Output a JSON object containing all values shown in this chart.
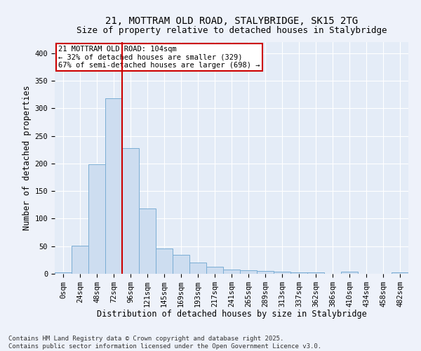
{
  "title_line1": "21, MOTTRAM OLD ROAD, STALYBRIDGE, SK15 2TG",
  "title_line2": "Size of property relative to detached houses in Stalybridge",
  "xlabel": "Distribution of detached houses by size in Stalybridge",
  "ylabel": "Number of detached properties",
  "bar_labels": [
    "0sqm",
    "24sqm",
    "48sqm",
    "72sqm",
    "96sqm",
    "121sqm",
    "145sqm",
    "169sqm",
    "193sqm",
    "217sqm",
    "241sqm",
    "265sqm",
    "289sqm",
    "313sqm",
    "337sqm",
    "362sqm",
    "386sqm",
    "410sqm",
    "434sqm",
    "458sqm",
    "482sqm"
  ],
  "bar_values": [
    2,
    51,
    198,
    318,
    228,
    118,
    46,
    34,
    21,
    13,
    8,
    6,
    5,
    4,
    3,
    2,
    0,
    4,
    0,
    0,
    3
  ],
  "bar_color": "#cdddf0",
  "bar_edge_color": "#7aadd4",
  "vline_x_index": 4,
  "vline_color": "#cc0000",
  "annotation_text": "21 MOTTRAM OLD ROAD: 104sqm\n← 32% of detached houses are smaller (329)\n67% of semi-detached houses are larger (698) →",
  "annotation_box_color": "#ffffff",
  "annotation_box_edge_color": "#cc0000",
  "ylim": [
    0,
    420
  ],
  "yticks": [
    0,
    50,
    100,
    150,
    200,
    250,
    300,
    350,
    400
  ],
  "background_color": "#eef2fa",
  "plot_bg_color": "#e4ecf7",
  "footer_text": "Contains HM Land Registry data © Crown copyright and database right 2025.\nContains public sector information licensed under the Open Government Licence v3.0.",
  "title_fontsize": 10,
  "subtitle_fontsize": 9,
  "xlabel_fontsize": 8.5,
  "ylabel_fontsize": 8.5,
  "tick_fontsize": 7.5,
  "footer_fontsize": 6.5,
  "annotation_fontsize": 7.5
}
